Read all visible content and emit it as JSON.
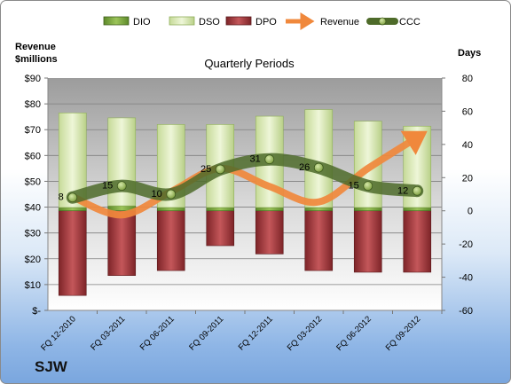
{
  "chart_data": {
    "type": "bar",
    "subtitle": "Quarterly Periods",
    "company": "SJW",
    "left_axis_label": [
      "Revenue",
      "$millions"
    ],
    "right_axis_label": "Days",
    "left_axis": {
      "ylim": [
        0,
        90
      ],
      "ticks": [
        "$-",
        "$10",
        "$20",
        "$30",
        "$40",
        "$50",
        "$60",
        "$70",
        "$80",
        "$90"
      ]
    },
    "right_axis": {
      "ylim": [
        -60,
        80
      ],
      "ticks": [
        "-60",
        "-40",
        "-20",
        "0",
        "20",
        "40",
        "60",
        "80"
      ]
    },
    "categories": [
      "FQ 12-2010",
      "FQ 03-2011",
      "FQ 06-2011",
      "FQ 09-2011",
      "FQ 12-2011",
      "FQ 03-2012",
      "FQ 06-2012",
      "FQ 09-2012"
    ],
    "series": [
      {
        "name": "DIO",
        "kind": "stacked-bar",
        "axis": "right",
        "color": "#7aa43a",
        "values": [
          2,
          3,
          2,
          2,
          2,
          2,
          2,
          2
        ]
      },
      {
        "name": "DSO",
        "kind": "stacked-bar",
        "axis": "right",
        "color": "#d7e7b4",
        "values": [
          57,
          53,
          50,
          50,
          55,
          59,
          52,
          49
        ]
      },
      {
        "name": "DPO",
        "kind": "negative-bar",
        "axis": "right",
        "color": "#a23a3e",
        "values": [
          -51,
          -39,
          -36,
          -21,
          -26,
          -36,
          -37,
          -37
        ]
      },
      {
        "name": "Revenue",
        "kind": "arrow-line",
        "axis": "left",
        "color": "#f0883c",
        "values": [
          44,
          37,
          46,
          55,
          48,
          42,
          55,
          67
        ]
      },
      {
        "name": "CCC",
        "kind": "line-markers",
        "axis": "right",
        "color": "#4e6b2a",
        "values": [
          8,
          15,
          10,
          25,
          31,
          26,
          15,
          12
        ]
      }
    ],
    "grid": true,
    "legend": "top"
  }
}
